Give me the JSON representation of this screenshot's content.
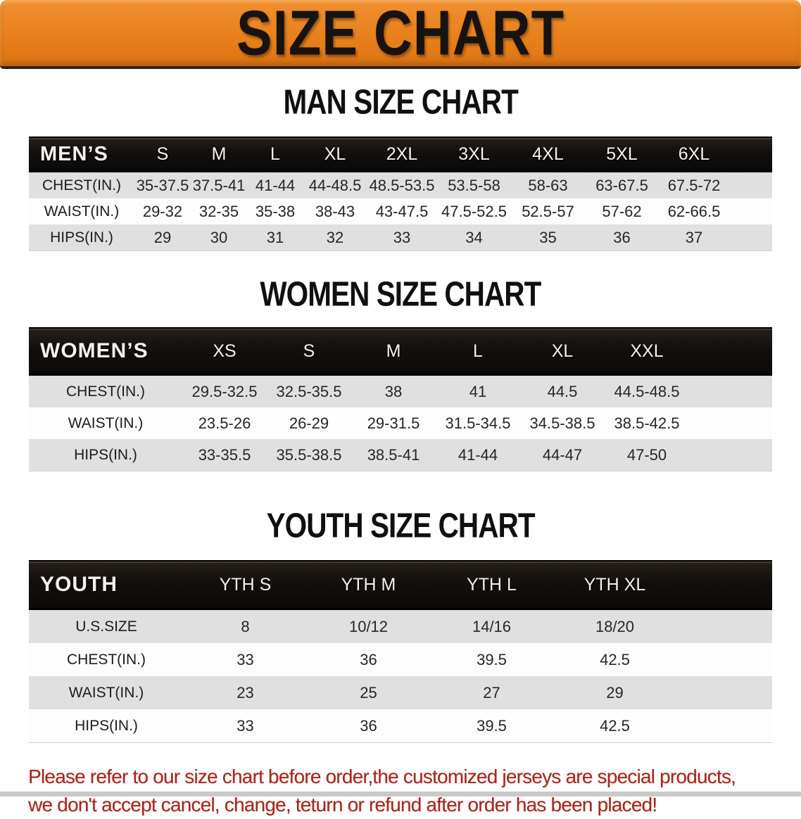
{
  "banner": {
    "title": "SIZE CHART",
    "background_color": "#e8811c",
    "title_color": "#171310"
  },
  "sections": [
    {
      "heading": "MAN SIZE CHART",
      "table": {
        "title": "MEN’S",
        "columns": [
          "S",
          "M",
          "L",
          "XL",
          "2XL",
          "3XL",
          "4XL",
          "5XL",
          "6XL"
        ],
        "rows": [
          {
            "label": "CHEST(IN.)",
            "values": [
              "35-37.5",
              "37.5-41",
              "41-44",
              "44-48.5",
              "48.5-53.5",
              "53.5-58",
              "58-63",
              "63-67.5",
              "67.5-72"
            ]
          },
          {
            "label": "WAIST(IN.)",
            "values": [
              "29-32",
              "32-35",
              "35-38",
              "38-43",
              "43-47.5",
              "47.5-52.5",
              "52.5-57",
              "57-62",
              "62-66.5"
            ]
          },
          {
            "label": "HIPS(IN.)",
            "values": [
              "29",
              "30",
              "31",
              "32",
              "33",
              "34",
              "35",
              "36",
              "37"
            ]
          }
        ]
      }
    },
    {
      "heading": "WOMEN SIZE CHART",
      "table": {
        "title": "WOMEN’S",
        "columns": [
          "XS",
          "S",
          "M",
          "L",
          "XL",
          "XXL"
        ],
        "rows": [
          {
            "label": "CHEST(IN.)",
            "values": [
              "29.5-32.5",
              "32.5-35.5",
              "38",
              "41",
              "44.5",
              "44.5-48.5"
            ]
          },
          {
            "label": "WAIST(IN.)",
            "values": [
              "23.5-26",
              "26-29",
              "29-31.5",
              "31.5-34.5",
              "34.5-38.5",
              "38.5-42.5"
            ]
          },
          {
            "label": "HIPS(IN.)",
            "values": [
              "33-35.5",
              "35.5-38.5",
              "38.5-41",
              "41-44",
              "44-47",
              "47-50"
            ]
          }
        ]
      }
    },
    {
      "heading": "YOUTH SIZE CHART",
      "table": {
        "title": "YOUTH",
        "columns": [
          "YTH S",
          "YTH M",
          "YTH L",
          "YTH XL"
        ],
        "rows": [
          {
            "label": "U.S.SIZE",
            "values": [
              "8",
              "10/12",
              "14/16",
              "18/20"
            ]
          },
          {
            "label": "CHEST(IN.)",
            "values": [
              "33",
              "36",
              "39.5",
              "42.5"
            ]
          },
          {
            "label": "WAIST(IN.)",
            "values": [
              "23",
              "25",
              "27",
              "29"
            ]
          },
          {
            "label": "HIPS(IN.)",
            "values": [
              "33",
              "36",
              "39.5",
              "42.5"
            ]
          }
        ]
      }
    }
  ],
  "disclaimer": {
    "lines": [
      "Please refer to our size chart before order,the customized jerseys are special products,",
      "we don't accept cancel, change, teturn or refund after order has been placed!"
    ],
    "color": "#a5281e"
  },
  "colors": {
    "header_bar": "#120f0d",
    "row_stripe": "#e0e0e0",
    "row_alt": "#fdfdfd",
    "table_text": "#262626"
  }
}
